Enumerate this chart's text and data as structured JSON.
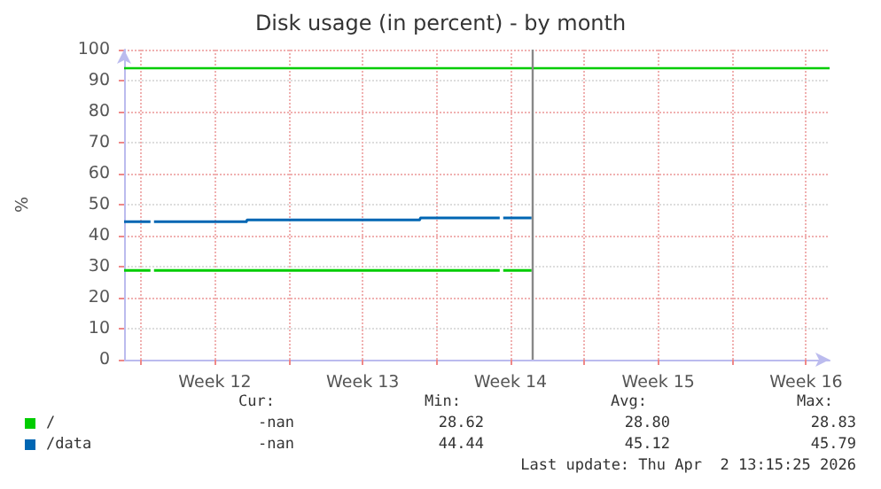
{
  "chart_data": {
    "type": "line",
    "title": "Disk usage (in percent) - by month",
    "ylabel": "%",
    "x": [
      "2026-03-14T06:00",
      "2026-03-15T12:00",
      "2026-03-15T14:00",
      "2026-03-15T16:00",
      "2026-03-20T01:00",
      "2026-03-20T02:00",
      "2026-03-28T06:00",
      "2026-03-28T07:00",
      "2026-04-01T01:00",
      "2026-04-01T03:00",
      "2026-04-01T05:00",
      "2026-04-02T13:15"
    ],
    "series": [
      {
        "name": "/",
        "color": "#00cc00",
        "values": [
          28.8,
          28.8,
          null,
          28.8,
          28.8,
          28.8,
          28.8,
          28.8,
          28.8,
          null,
          28.8,
          28.8
        ]
      },
      {
        "name": "/data",
        "color": "#0066b3",
        "values": [
          44.5,
          44.5,
          null,
          44.5,
          44.5,
          45.1,
          45.1,
          45.7,
          45.7,
          null,
          45.7,
          45.7
        ]
      }
    ],
    "xlim": [
      "2026-03-14T06:00",
      "2026-04-16T16:00"
    ],
    "xticks": [
      {
        "value": "2026-03-15T01:15",
        "label": null
      },
      {
        "value": "2026-03-18T13:15",
        "label": "Week 12"
      },
      {
        "value": "2026-03-22T01:15",
        "label": null
      },
      {
        "value": "2026-03-25T13:15",
        "label": "Week 13"
      },
      {
        "value": "2026-03-29T01:15",
        "label": null
      },
      {
        "value": "2026-04-01T13:15",
        "label": "Week 14"
      },
      {
        "value": "2026-04-05T01:15",
        "label": null
      },
      {
        "value": "2026-04-08T13:15",
        "label": "Week 15"
      },
      {
        "value": "2026-04-12T01:15",
        "label": null
      },
      {
        "value": "2026-04-15T13:15",
        "label": "Week 16"
      }
    ],
    "ylim": [
      0,
      100
    ],
    "yticks": [
      0,
      10,
      20,
      30,
      40,
      50,
      60,
      70,
      80,
      90,
      100
    ],
    "ref_lines": [
      {
        "axis": "y",
        "value": 94,
        "label": null,
        "color": "#00cc00"
      },
      {
        "axis": "x",
        "value": "2026-04-02T13:15",
        "label": null,
        "color": "#888888"
      }
    ],
    "grid": true,
    "legend": "bottom",
    "marker": "none",
    "line_style": "solid",
    "annotations": [
      "Cur:",
      "Min:",
      "Avg:",
      "Max:",
      "-nan",
      "28.62",
      "28.80",
      "28.83",
      "-nan",
      "44.44",
      "45.12",
      "45.79",
      "Last update: Thu Apr  2 13:15:25 2026"
    ]
  }
}
